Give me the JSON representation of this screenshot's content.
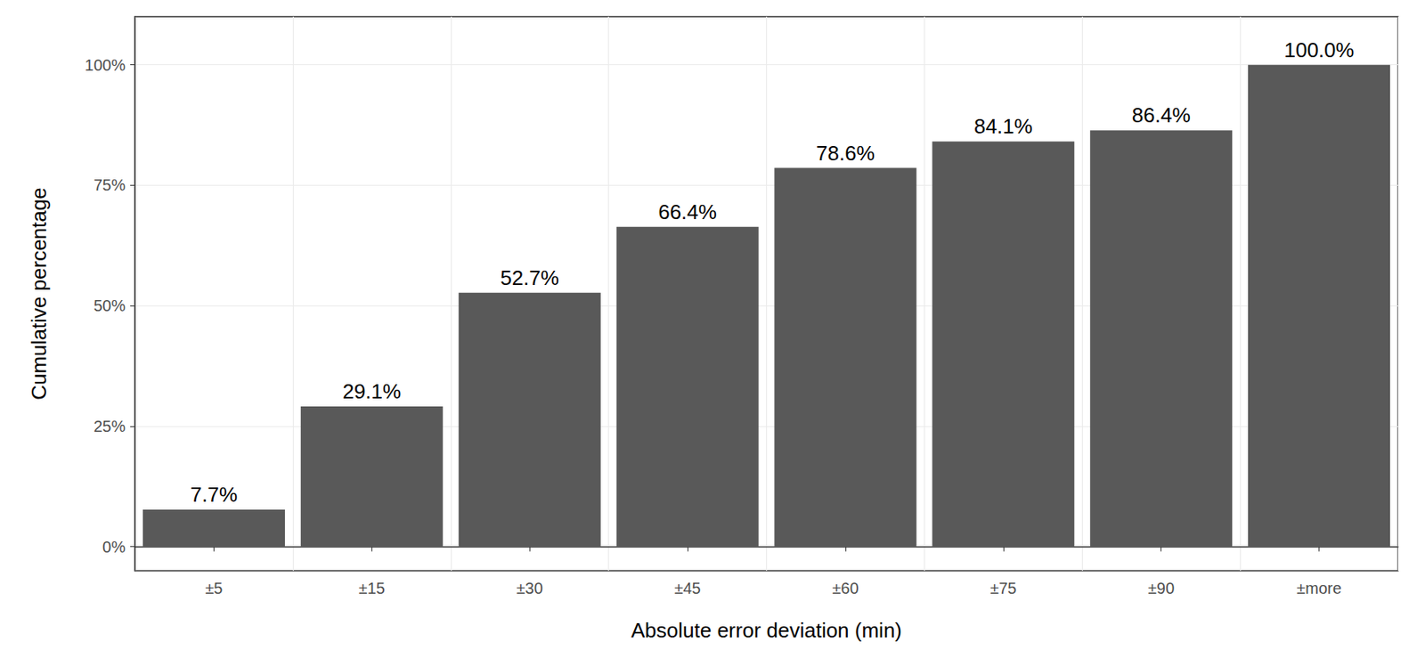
{
  "chart_data": {
    "type": "bar",
    "categories": [
      "±5",
      "±15",
      "±30",
      "±45",
      "±60",
      "±75",
      "±90",
      "±more"
    ],
    "values": [
      7.7,
      29.1,
      52.7,
      66.4,
      78.6,
      84.1,
      86.4,
      100.0
    ],
    "value_labels": [
      "7.7%",
      "29.1%",
      "52.7%",
      "66.4%",
      "78.6%",
      "84.1%",
      "86.4%",
      "100.0%"
    ],
    "color": "#595959",
    "xlabel": "Absolute error deviation (min)",
    "ylabel": "Cumulative percentage",
    "ylim": [
      -5,
      110
    ],
    "yticks": [
      {
        "value": 0,
        "label": "0%"
      },
      {
        "value": 25,
        "label": "25%"
      },
      {
        "value": 50,
        "label": "50%"
      },
      {
        "value": 75,
        "label": "75%"
      },
      {
        "value": 100,
        "label": "100%"
      }
    ],
    "grid": true,
    "data_labels": true
  }
}
